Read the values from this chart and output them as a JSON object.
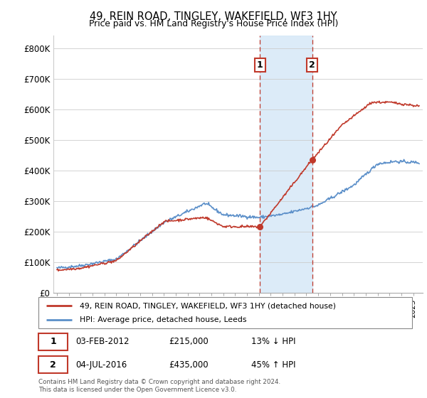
{
  "title": "49, REIN ROAD, TINGLEY, WAKEFIELD, WF3 1HY",
  "subtitle": "Price paid vs. HM Land Registry's House Price Index (HPI)",
  "ylim": [
    0,
    840000
  ],
  "yticks": [
    0,
    100000,
    200000,
    300000,
    400000,
    500000,
    600000,
    700000,
    800000
  ],
  "ytick_labels": [
    "£0",
    "£100K",
    "£200K",
    "£300K",
    "£400K",
    "£500K",
    "£600K",
    "£700K",
    "£800K"
  ],
  "t1_date": 2012.09,
  "t1_price": 215000,
  "t1_date_str": "03-FEB-2012",
  "t1_pct": "13% ↓ HPI",
  "t2_date": 2016.5,
  "t2_price": 435000,
  "t2_date_str": "04-JUL-2016",
  "t2_pct": "45% ↑ HPI",
  "legend_line1": "49, REIN ROAD, TINGLEY, WAKEFIELD, WF3 1HY (detached house)",
  "legend_line2": "HPI: Average price, detached house, Leeds",
  "footnote": "Contains HM Land Registry data © Crown copyright and database right 2024.\nThis data is licensed under the Open Government Licence v3.0.",
  "hpi_color": "#5b8fc9",
  "price_color": "#c0392b",
  "shade_color": "#d6e8f7",
  "grid_color": "#cccccc",
  "xmin": 1994.7,
  "xmax": 2025.8
}
